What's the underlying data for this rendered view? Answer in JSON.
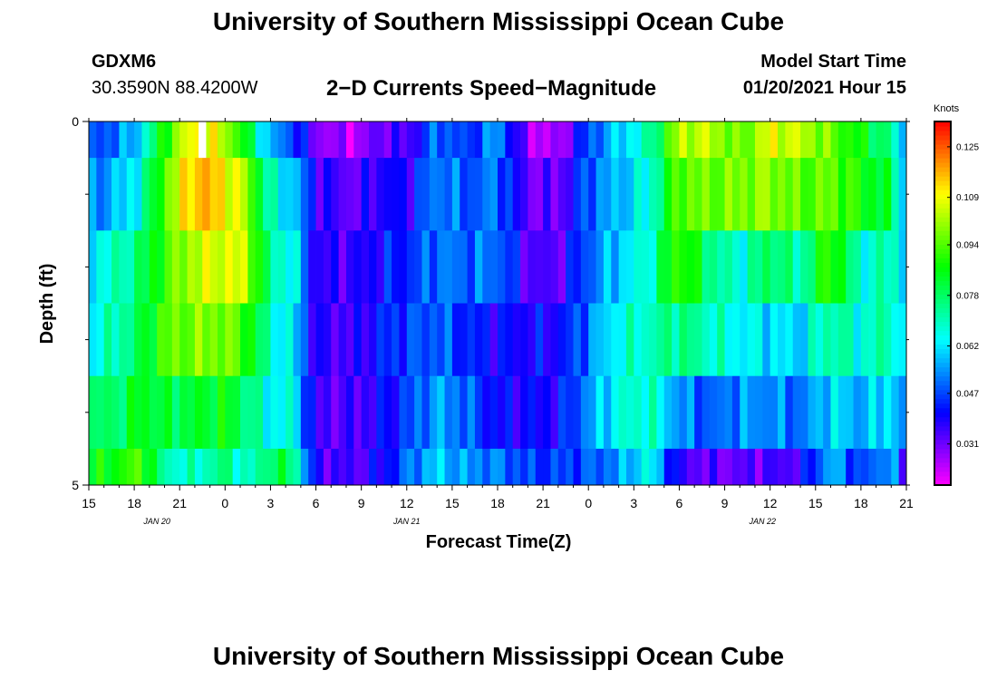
{
  "header": {
    "main_title": "University of Southern Mississippi Ocean Cube",
    "station": "GDXM6",
    "coords": "30.3590N 88.4200W",
    "chart_title": "2−D Currents Speed−Magnitude",
    "model_start_label": "Model Start Time",
    "model_start_value": "01/20/2021 Hour 15"
  },
  "footer": {
    "title": "University of Southern Mississippi Ocean Cube"
  },
  "chart_data": {
    "type": "heatmap",
    "title": "2−D Currents Speed−Magnitude",
    "xlabel": "Forecast Time(Z)",
    "ylabel": "Depth (ft)",
    "colorbar_unit": "Knots",
    "y_range": [
      0,
      5
    ],
    "y_tick_labels": [
      {
        "value": 0,
        "label": "0"
      },
      {
        "value": 5,
        "label": "5"
      }
    ],
    "y_minor_ticks": [
      1,
      2,
      3,
      4
    ],
    "x_range_hours": [
      0,
      54
    ],
    "x_ticks": [
      {
        "hour": 0,
        "label": "15"
      },
      {
        "hour": 3,
        "label": "18"
      },
      {
        "hour": 6,
        "label": "21"
      },
      {
        "hour": 9,
        "label": "0"
      },
      {
        "hour": 12,
        "label": "3"
      },
      {
        "hour": 15,
        "label": "6"
      },
      {
        "hour": 18,
        "label": "9"
      },
      {
        "hour": 21,
        "label": "12"
      },
      {
        "hour": 24,
        "label": "15"
      },
      {
        "hour": 27,
        "label": "18"
      },
      {
        "hour": 30,
        "label": "21"
      },
      {
        "hour": 33,
        "label": "0"
      },
      {
        "hour": 36,
        "label": "3"
      },
      {
        "hour": 39,
        "label": "6"
      },
      {
        "hour": 42,
        "label": "9"
      },
      {
        "hour": 45,
        "label": "12"
      },
      {
        "hour": 48,
        "label": "15"
      },
      {
        "hour": 51,
        "label": "18"
      },
      {
        "hour": 54,
        "label": "21"
      }
    ],
    "date_labels": [
      {
        "hour": 4.5,
        "label": "JAN  20"
      },
      {
        "hour": 21,
        "label": "JAN  21"
      },
      {
        "hour": 44.5,
        "label": "JAN  22"
      }
    ],
    "colorbar_ticks": [
      0.031,
      0.047,
      0.062,
      0.078,
      0.094,
      0.109,
      0.125
    ],
    "colorbar_range": [
      0.018,
      0.133
    ],
    "missing_cell": {
      "hour": 7.5,
      "depth": 0
    },
    "depth_bins": [
      "0-0.5",
      "0.5-1.5",
      "1.5-2.5",
      "2.5-3.5",
      "3.5-4.5",
      "4.5-5"
    ],
    "speed_keyframes": [
      {
        "hour": 0,
        "values": [
          0.046,
          0.052,
          0.063,
          0.064,
          0.076,
          0.084
        ]
      },
      {
        "hour": 2,
        "values": [
          0.052,
          0.058,
          0.07,
          0.072,
          0.078,
          0.088
        ]
      },
      {
        "hour": 3.5,
        "values": [
          0.062,
          0.068,
          0.078,
          0.08,
          0.086,
          0.094
        ]
      },
      {
        "hour": 5,
        "values": [
          0.09,
          0.095,
          0.092,
          0.094,
          0.08,
          0.07
        ]
      },
      {
        "hour": 7,
        "values": [
          0.112,
          0.118,
          0.104,
          0.098,
          0.082,
          0.068
        ]
      },
      {
        "hour": 9,
        "values": [
          0.104,
          0.112,
          0.108,
          0.098,
          0.086,
          0.076
        ]
      },
      {
        "hour": 10.5,
        "values": [
          0.082,
          0.1,
          0.104,
          0.09,
          0.076,
          0.066
        ]
      },
      {
        "hour": 12,
        "values": [
          0.055,
          0.068,
          0.072,
          0.068,
          0.064,
          0.08
        ]
      },
      {
        "hour": 13.5,
        "values": [
          0.048,
          0.06,
          0.066,
          0.062,
          0.066,
          0.078
        ]
      },
      {
        "hour": 15,
        "values": [
          0.03,
          0.038,
          0.036,
          0.036,
          0.034,
          0.036
        ]
      },
      {
        "hour": 17.5,
        "values": [
          0.024,
          0.032,
          0.036,
          0.035,
          0.034,
          0.034
        ]
      },
      {
        "hour": 19.5,
        "values": [
          0.034,
          0.04,
          0.042,
          0.044,
          0.04,
          0.04
        ]
      },
      {
        "hour": 21,
        "values": [
          0.033,
          0.038,
          0.044,
          0.046,
          0.046,
          0.05
        ]
      },
      {
        "hour": 23,
        "values": [
          0.052,
          0.054,
          0.052,
          0.05,
          0.056,
          0.06
        ]
      },
      {
        "hour": 25,
        "values": [
          0.044,
          0.048,
          0.05,
          0.044,
          0.05,
          0.054
        ]
      },
      {
        "hour": 27,
        "values": [
          0.056,
          0.052,
          0.052,
          0.04,
          0.04,
          0.052
        ]
      },
      {
        "hour": 29,
        "values": [
          0.026,
          0.032,
          0.034,
          0.04,
          0.04,
          0.046
        ]
      },
      {
        "hour": 31,
        "values": [
          0.024,
          0.031,
          0.033,
          0.04,
          0.04,
          0.046
        ]
      },
      {
        "hour": 33,
        "values": [
          0.048,
          0.05,
          0.05,
          0.052,
          0.054,
          0.048
        ]
      },
      {
        "hour": 35,
        "values": [
          0.06,
          0.058,
          0.06,
          0.066,
          0.066,
          0.054
        ]
      },
      {
        "hour": 37,
        "values": [
          0.07,
          0.066,
          0.068,
          0.07,
          0.07,
          0.066
        ]
      },
      {
        "hour": 39,
        "values": [
          0.104,
          0.096,
          0.094,
          0.076,
          0.054,
          0.036
        ]
      },
      {
        "hour": 41,
        "values": [
          0.104,
          0.096,
          0.076,
          0.07,
          0.048,
          0.032
        ]
      },
      {
        "hour": 43,
        "values": [
          0.094,
          0.098,
          0.066,
          0.064,
          0.054,
          0.032
        ]
      },
      {
        "hour": 45,
        "values": [
          0.108,
          0.1,
          0.08,
          0.062,
          0.054,
          0.034
        ]
      },
      {
        "hour": 47,
        "values": [
          0.104,
          0.094,
          0.07,
          0.06,
          0.05,
          0.036
        ]
      },
      {
        "hour": 49,
        "values": [
          0.096,
          0.096,
          0.094,
          0.074,
          0.062,
          0.058
        ]
      },
      {
        "hour": 51,
        "values": [
          0.086,
          0.088,
          0.066,
          0.066,
          0.056,
          0.044
        ]
      },
      {
        "hour": 53,
        "values": [
          0.074,
          0.08,
          0.072,
          0.074,
          0.064,
          0.058
        ]
      },
      {
        "hour": 54,
        "values": [
          0.05,
          0.056,
          0.06,
          0.052,
          0.046,
          0.03
        ]
      }
    ]
  }
}
